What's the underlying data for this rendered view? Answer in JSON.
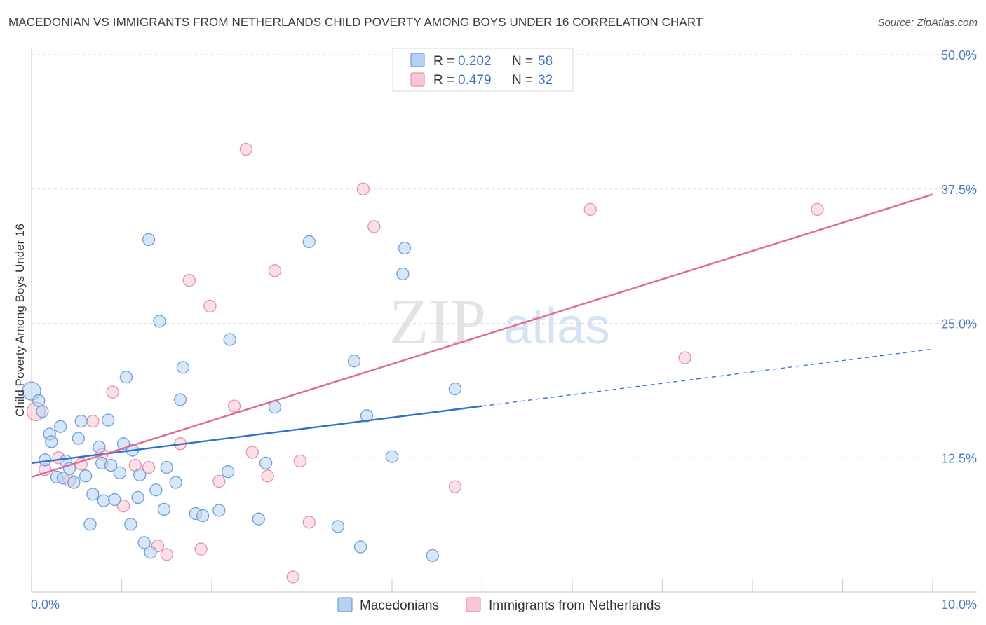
{
  "title": "MACEDONIAN VS IMMIGRANTS FROM NETHERLANDS CHILD POVERTY AMONG BOYS UNDER 16 CORRELATION CHART",
  "source": "Source: ZipAtlas.com",
  "watermark": {
    "zip": "ZIP",
    "atlas": "atlas"
  },
  "colors": {
    "blue_fill": "#b7d1f3",
    "blue_stroke": "#6f9fd8",
    "blue_line": "#2f6fce",
    "pink_fill": "#f8c6d5",
    "pink_stroke": "#e890ac",
    "pink_line": "#e06c96",
    "grid": "#dddddd",
    "tick_text": "#4a7cc4"
  },
  "legend": {
    "rows": [
      {
        "r_label": "R = ",
        "r_value": "0.202",
        "n_label": "N = ",
        "n_value": "58"
      },
      {
        "r_label": "R = ",
        "r_value": "0.479",
        "n_label": "N = ",
        "n_value": "32"
      }
    ]
  },
  "chart_data": {
    "type": "scatter",
    "title": "MACEDONIAN VS IMMIGRANTS FROM NETHERLANDS CHILD POVERTY AMONG BOYS UNDER 16 CORRELATION CHART",
    "xlabel": "",
    "ylabel": "Child Poverty Among Boys Under 16",
    "xlim": [
      0,
      10
    ],
    "ylim": [
      0,
      50
    ],
    "x_tick_labels": [
      "0.0%",
      "10.0%"
    ],
    "y_ticks": [
      12.5,
      25.0,
      37.5,
      50.0
    ],
    "y_tick_labels": [
      "12.5%",
      "25.0%",
      "37.5%",
      "50.0%"
    ],
    "grid": true,
    "legend_position": "top-center",
    "series": [
      {
        "name": "Macedonians",
        "trend": {
          "x0": 0,
          "y0": 12.0,
          "x1": 10,
          "y1": 22.6,
          "solid_until": 5.0
        },
        "points": [
          [
            0.0,
            18.7
          ],
          [
            0.08,
            17.8
          ],
          [
            0.12,
            16.8
          ],
          [
            0.15,
            12.3
          ],
          [
            0.2,
            14.7
          ],
          [
            0.22,
            14.0
          ],
          [
            0.28,
            10.7
          ],
          [
            0.32,
            15.4
          ],
          [
            0.38,
            12.2
          ],
          [
            0.35,
            10.6
          ],
          [
            0.42,
            11.5
          ],
          [
            0.47,
            10.2
          ],
          [
            0.52,
            14.3
          ],
          [
            0.55,
            15.9
          ],
          [
            0.6,
            10.8
          ],
          [
            0.65,
            6.3
          ],
          [
            0.68,
            9.1
          ],
          [
            0.75,
            13.5
          ],
          [
            0.78,
            12.0
          ],
          [
            0.8,
            8.5
          ],
          [
            0.85,
            16.0
          ],
          [
            0.88,
            11.8
          ],
          [
            0.92,
            8.6
          ],
          [
            0.98,
            11.1
          ],
          [
            1.02,
            13.8
          ],
          [
            1.05,
            20.0
          ],
          [
            1.1,
            6.3
          ],
          [
            1.12,
            13.2
          ],
          [
            1.18,
            8.8
          ],
          [
            1.2,
            10.9
          ],
          [
            1.25,
            4.6
          ],
          [
            1.3,
            32.8
          ],
          [
            1.32,
            3.7
          ],
          [
            1.38,
            9.5
          ],
          [
            1.42,
            25.2
          ],
          [
            1.47,
            7.7
          ],
          [
            1.5,
            11.6
          ],
          [
            1.6,
            10.2
          ],
          [
            1.65,
            17.9
          ],
          [
            1.68,
            20.9
          ],
          [
            1.82,
            7.3
          ],
          [
            1.9,
            7.1
          ],
          [
            2.08,
            7.6
          ],
          [
            2.18,
            11.2
          ],
          [
            2.2,
            23.5
          ],
          [
            2.52,
            6.8
          ],
          [
            2.6,
            12.0
          ],
          [
            2.7,
            17.2
          ],
          [
            3.08,
            32.6
          ],
          [
            3.4,
            6.1
          ],
          [
            3.58,
            21.5
          ],
          [
            3.65,
            4.2
          ],
          [
            3.72,
            16.4
          ],
          [
            4.0,
            12.6
          ],
          [
            4.12,
            29.6
          ],
          [
            4.14,
            32.0
          ],
          [
            4.45,
            3.4
          ],
          [
            4.7,
            18.9
          ]
        ]
      },
      {
        "name": "Immigrants from Netherlands",
        "trend": {
          "x0": 0,
          "y0": 10.7,
          "x1": 10,
          "y1": 37.0,
          "solid_until": 10.0
        },
        "points": [
          [
            0.05,
            16.8
          ],
          [
            0.15,
            11.4
          ],
          [
            0.3,
            12.5
          ],
          [
            0.42,
            10.4
          ],
          [
            0.55,
            11.9
          ],
          [
            0.68,
            15.9
          ],
          [
            0.78,
            12.8
          ],
          [
            0.9,
            18.6
          ],
          [
            1.02,
            8.0
          ],
          [
            1.15,
            11.8
          ],
          [
            1.3,
            11.6
          ],
          [
            1.4,
            4.3
          ],
          [
            1.5,
            3.5
          ],
          [
            1.65,
            13.8
          ],
          [
            1.75,
            29.0
          ],
          [
            1.88,
            4.0
          ],
          [
            1.98,
            26.6
          ],
          [
            2.08,
            10.3
          ],
          [
            2.25,
            17.3
          ],
          [
            2.38,
            41.2
          ],
          [
            2.45,
            13.0
          ],
          [
            2.7,
            29.9
          ],
          [
            2.62,
            10.8
          ],
          [
            2.9,
            1.4
          ],
          [
            2.98,
            12.2
          ],
          [
            3.08,
            6.5
          ],
          [
            3.68,
            37.5
          ],
          [
            3.8,
            34.0
          ],
          [
            4.7,
            9.8
          ],
          [
            6.2,
            35.6
          ],
          [
            7.25,
            21.8
          ],
          [
            8.72,
            35.6
          ]
        ]
      }
    ]
  }
}
